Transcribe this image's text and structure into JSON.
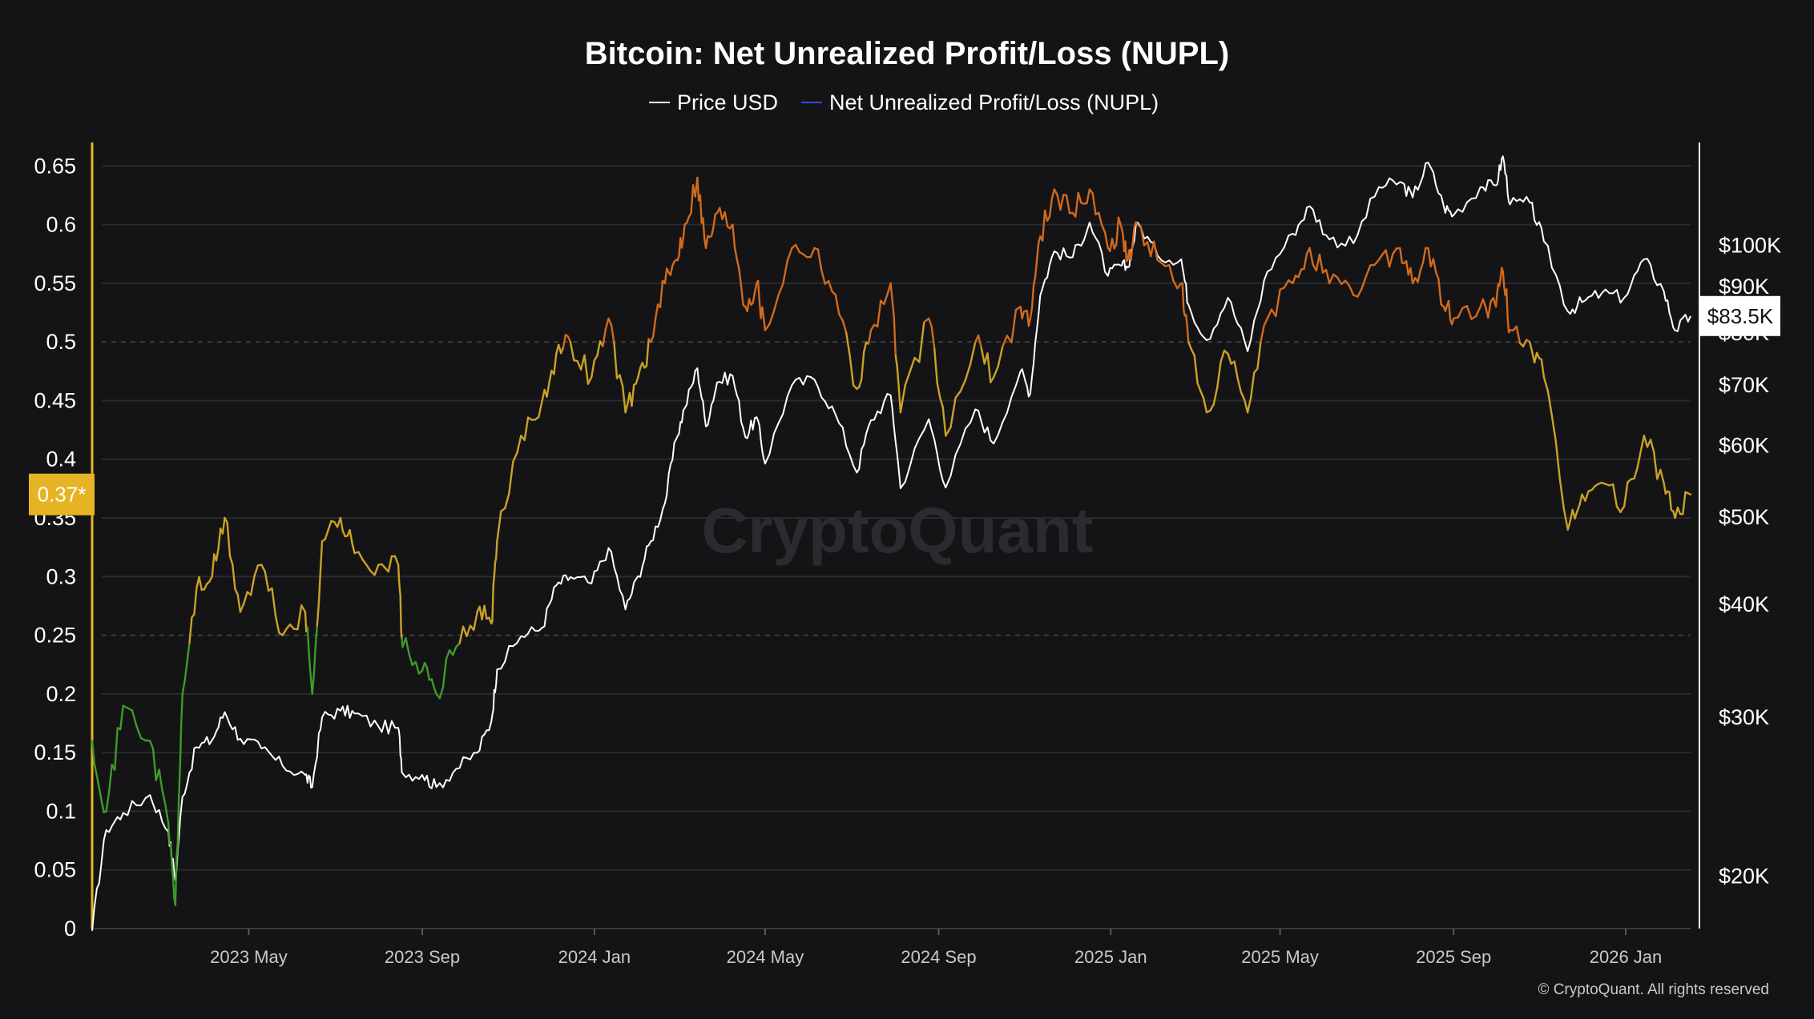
{
  "chart_data": {
    "type": "line",
    "title": "Bitcoin: Net Unrealized Profit/Loss (NUPL)",
    "watermark": "CryptoQuant",
    "credit": "© CryptoQuant. All rights reserved",
    "legend": [
      {
        "name": "Price USD",
        "color": "#ffffff"
      },
      {
        "name": "Net Unrealized Profit/Loss (NUPL)",
        "color": "#3b46e8"
      }
    ],
    "legend_placement": "top-center",
    "grid": true,
    "x_axis": {
      "type": "date",
      "range": [
        "2023-01-10",
        "2026-02-16"
      ],
      "tick_labels": [
        "2023 May",
        "2023 Sep",
        "2024 Jan",
        "2024 May",
        "2024 Sep",
        "2025 Jan",
        "2025 May",
        "2025 Sep",
        "2026 Jan"
      ],
      "tick_dates": [
        "2023-05-01",
        "2023-09-01",
        "2024-01-01",
        "2024-05-01",
        "2024-09-01",
        "2025-01-01",
        "2025-05-01",
        "2025-09-01",
        "2026-01-01"
      ]
    },
    "y_left": {
      "label": "",
      "range": [
        0,
        0.67
      ],
      "ticks": [
        0,
        0.05,
        0.1,
        0.15,
        0.2,
        0.25,
        0.3,
        0.35,
        0.4,
        0.45,
        0.5,
        0.55,
        0.6,
        0.65
      ],
      "tick_labels": [
        "0",
        "0.05",
        "0.1",
        "0.15",
        "0.2",
        "0.25",
        "0.3",
        "0.35",
        "0.4",
        "0.45",
        "0.5",
        "0.55",
        "0.6",
        "0.65"
      ],
      "current_value_label": "0.37*",
      "current_value": 0.37,
      "axis_color": "#e6b325"
    },
    "y_right": {
      "label": "",
      "scale": "log",
      "range": [
        17500,
        130000
      ],
      "ticks": [
        20000,
        30000,
        40000,
        50000,
        60000,
        70000,
        80000,
        90000,
        100000
      ],
      "tick_labels": [
        "$20K",
        "$30K",
        "$40K",
        "$50K",
        "$60K",
        "$70K",
        "$80K",
        "$90K",
        "$100K"
      ],
      "current_value_label": "$83.5K",
      "current_value": 83500
    },
    "nupl_color_bands": [
      {
        "from": 0,
        "to": 0.25,
        "color": "#3f9a2a"
      },
      {
        "from": 0.25,
        "to": 0.5,
        "color": "#c9a227"
      },
      {
        "from": 0.5,
        "to": 0.75,
        "color": "#d06a1e"
      }
    ],
    "series": [
      {
        "name": "Price USD",
        "axis": "right",
        "color": "#ffffff",
        "points": [
          [
            "2023-01-10",
            17400
          ],
          [
            "2023-01-20",
            22500
          ],
          [
            "2023-02-01",
            23500
          ],
          [
            "2023-02-20",
            24600
          ],
          [
            "2023-03-05",
            22400
          ],
          [
            "2023-03-10",
            19800
          ],
          [
            "2023-03-15",
            24500
          ],
          [
            "2023-03-25",
            27800
          ],
          [
            "2023-04-05",
            28300
          ],
          [
            "2023-04-14",
            30400
          ],
          [
            "2023-04-25",
            28400
          ],
          [
            "2023-05-10",
            27700
          ],
          [
            "2023-05-25",
            26500
          ],
          [
            "2023-06-10",
            25900
          ],
          [
            "2023-06-15",
            25100
          ],
          [
            "2023-06-22",
            30000
          ],
          [
            "2023-07-05",
            30500
          ],
          [
            "2023-07-15",
            30300
          ],
          [
            "2023-08-01",
            29300
          ],
          [
            "2023-08-15",
            29200
          ],
          [
            "2023-08-18",
            26000
          ],
          [
            "2023-09-01",
            25900
          ],
          [
            "2023-09-11",
            25100
          ],
          [
            "2023-09-25",
            26300
          ],
          [
            "2023-10-10",
            27400
          ],
          [
            "2023-10-20",
            29700
          ],
          [
            "2023-10-24",
            33900
          ],
          [
            "2023-11-10",
            36900
          ],
          [
            "2023-11-25",
            37700
          ],
          [
            "2023-12-05",
            42000
          ],
          [
            "2023-12-15",
            42900
          ],
          [
            "2023-12-30",
            42200
          ],
          [
            "2024-01-11",
            46200
          ],
          [
            "2024-01-23",
            39500
          ],
          [
            "2024-02-01",
            43000
          ],
          [
            "2024-02-10",
            47000
          ],
          [
            "2024-02-20",
            51800
          ],
          [
            "2024-02-28",
            61000
          ],
          [
            "2024-03-05",
            66000
          ],
          [
            "2024-03-14",
            73100
          ],
          [
            "2024-03-20",
            63000
          ],
          [
            "2024-03-28",
            70500
          ],
          [
            "2024-04-08",
            71700
          ],
          [
            "2024-04-17",
            61300
          ],
          [
            "2024-04-25",
            64500
          ],
          [
            "2024-05-01",
            57300
          ],
          [
            "2024-05-20",
            70000
          ],
          [
            "2024-06-05",
            71000
          ],
          [
            "2024-06-20",
            64900
          ],
          [
            "2024-07-05",
            56000
          ],
          [
            "2024-07-15",
            64000
          ],
          [
            "2024-07-29",
            68200
          ],
          [
            "2024-08-05",
            53800
          ],
          [
            "2024-08-25",
            64200
          ],
          [
            "2024-09-06",
            53900
          ],
          [
            "2024-09-27",
            65800
          ],
          [
            "2024-10-10",
            60300
          ],
          [
            "2024-10-29",
            72500
          ],
          [
            "2024-11-05",
            68500
          ],
          [
            "2024-11-12",
            88000
          ],
          [
            "2024-11-22",
            98500
          ],
          [
            "2024-12-05",
            97000
          ],
          [
            "2024-12-17",
            106000
          ],
          [
            "2024-12-30",
            92500
          ],
          [
            "2025-01-08",
            95000
          ],
          [
            "2025-01-13",
            94500
          ],
          [
            "2025-01-20",
            106000
          ],
          [
            "2025-02-03",
            97500
          ],
          [
            "2025-02-20",
            96500
          ],
          [
            "2025-02-25",
            86000
          ],
          [
            "2025-03-10",
            78500
          ],
          [
            "2025-03-25",
            87500
          ],
          [
            "2025-04-08",
            76300
          ],
          [
            "2025-04-22",
            93500
          ],
          [
            "2025-05-10",
            103000
          ],
          [
            "2025-05-22",
            110500
          ],
          [
            "2025-06-05",
            101500
          ],
          [
            "2025-06-22",
            100500
          ],
          [
            "2025-07-10",
            116000
          ],
          [
            "2025-07-25",
            117500
          ],
          [
            "2025-08-03",
            113000
          ],
          [
            "2025-08-14",
            123500
          ],
          [
            "2025-08-25",
            110500
          ],
          [
            "2025-09-01",
            108000
          ],
          [
            "2025-09-20",
            116000
          ],
          [
            "2025-10-01",
            116500
          ],
          [
            "2025-10-06",
            125500
          ],
          [
            "2025-10-11",
            111000
          ],
          [
            "2025-10-25",
            111500
          ],
          [
            "2025-11-04",
            101000
          ],
          [
            "2025-11-21",
            84500
          ],
          [
            "2025-12-01",
            86500
          ],
          [
            "2025-12-15",
            88500
          ],
          [
            "2025-12-31",
            87500
          ],
          [
            "2026-01-14",
            96500
          ],
          [
            "2026-01-28",
            89000
          ],
          [
            "2026-02-05",
            80500
          ],
          [
            "2026-02-16",
            83500
          ]
        ]
      },
      {
        "name": "Net Unrealized Profit/Loss (NUPL)",
        "axis": "left",
        "color": "#3b46e8",
        "points": [
          [
            "2023-01-10",
            0.16
          ],
          [
            "2023-01-20",
            0.1
          ],
          [
            "2023-02-01",
            0.19
          ],
          [
            "2023-02-20",
            0.16
          ],
          [
            "2023-03-05",
            0.09
          ],
          [
            "2023-03-10",
            0.02
          ],
          [
            "2023-03-15",
            0.2
          ],
          [
            "2023-03-25",
            0.29
          ],
          [
            "2023-04-05",
            0.3
          ],
          [
            "2023-04-14",
            0.35
          ],
          [
            "2023-04-25",
            0.27
          ],
          [
            "2023-05-10",
            0.31
          ],
          [
            "2023-05-25",
            0.25
          ],
          [
            "2023-06-10",
            0.27
          ],
          [
            "2023-06-15",
            0.2
          ],
          [
            "2023-06-22",
            0.33
          ],
          [
            "2023-07-05",
            0.35
          ],
          [
            "2023-07-15",
            0.32
          ],
          [
            "2023-08-01",
            0.31
          ],
          [
            "2023-08-15",
            0.31
          ],
          [
            "2023-08-18",
            0.24
          ],
          [
            "2023-09-01",
            0.22
          ],
          [
            "2023-09-11",
            0.2
          ],
          [
            "2023-09-25",
            0.24
          ],
          [
            "2023-10-10",
            0.27
          ],
          [
            "2023-10-20",
            0.26
          ],
          [
            "2023-10-24",
            0.33
          ],
          [
            "2023-11-10",
            0.42
          ],
          [
            "2023-11-25",
            0.45
          ],
          [
            "2023-12-05",
            0.49
          ],
          [
            "2023-12-15",
            0.5
          ],
          [
            "2023-12-30",
            0.47
          ],
          [
            "2024-01-11",
            0.52
          ],
          [
            "2024-01-23",
            0.44
          ],
          [
            "2024-02-01",
            0.47
          ],
          [
            "2024-02-10",
            0.5
          ],
          [
            "2024-02-20",
            0.55
          ],
          [
            "2024-02-28",
            0.57
          ],
          [
            "2024-03-05",
            0.6
          ],
          [
            "2024-03-14",
            0.64
          ],
          [
            "2024-03-20",
            0.58
          ],
          [
            "2024-03-28",
            0.61
          ],
          [
            "2024-04-08",
            0.6
          ],
          [
            "2024-04-17",
            0.53
          ],
          [
            "2024-04-25",
            0.55
          ],
          [
            "2024-05-01",
            0.51
          ],
          [
            "2024-05-20",
            0.58
          ],
          [
            "2024-06-05",
            0.58
          ],
          [
            "2024-06-20",
            0.54
          ],
          [
            "2024-07-05",
            0.46
          ],
          [
            "2024-07-15",
            0.51
          ],
          [
            "2024-07-29",
            0.55
          ],
          [
            "2024-08-05",
            0.44
          ],
          [
            "2024-08-25",
            0.52
          ],
          [
            "2024-09-06",
            0.42
          ],
          [
            "2024-09-27",
            0.5
          ],
          [
            "2024-10-10",
            0.47
          ],
          [
            "2024-10-29",
            0.53
          ],
          [
            "2024-11-05",
            0.52
          ],
          [
            "2024-11-12",
            0.59
          ],
          [
            "2024-11-22",
            0.63
          ],
          [
            "2024-12-05",
            0.61
          ],
          [
            "2024-12-17",
            0.63
          ],
          [
            "2024-12-30",
            0.58
          ],
          [
            "2025-01-08",
            0.6
          ],
          [
            "2025-01-13",
            0.57
          ],
          [
            "2025-01-20",
            0.6
          ],
          [
            "2025-02-03",
            0.57
          ],
          [
            "2025-02-20",
            0.55
          ],
          [
            "2025-02-25",
            0.5
          ],
          [
            "2025-03-10",
            0.44
          ],
          [
            "2025-03-25",
            0.49
          ],
          [
            "2025-04-08",
            0.44
          ],
          [
            "2025-04-22",
            0.52
          ],
          [
            "2025-05-10",
            0.55
          ],
          [
            "2025-05-22",
            0.58
          ],
          [
            "2025-06-05",
            0.55
          ],
          [
            "2025-06-22",
            0.54
          ],
          [
            "2025-07-10",
            0.57
          ],
          [
            "2025-07-25",
            0.58
          ],
          [
            "2025-08-03",
            0.55
          ],
          [
            "2025-08-14",
            0.58
          ],
          [
            "2025-08-25",
            0.53
          ],
          [
            "2025-09-01",
            0.52
          ],
          [
            "2025-09-20",
            0.53
          ],
          [
            "2025-10-01",
            0.53
          ],
          [
            "2025-10-06",
            0.56
          ],
          [
            "2025-10-11",
            0.51
          ],
          [
            "2025-10-25",
            0.5
          ],
          [
            "2025-11-04",
            0.47
          ],
          [
            "2025-11-21",
            0.34
          ],
          [
            "2025-12-01",
            0.37
          ],
          [
            "2025-12-15",
            0.38
          ],
          [
            "2025-12-31",
            0.36
          ],
          [
            "2026-01-14",
            0.42
          ],
          [
            "2026-01-28",
            0.38
          ],
          [
            "2026-02-05",
            0.35
          ],
          [
            "2026-02-16",
            0.37
          ]
        ]
      }
    ]
  }
}
